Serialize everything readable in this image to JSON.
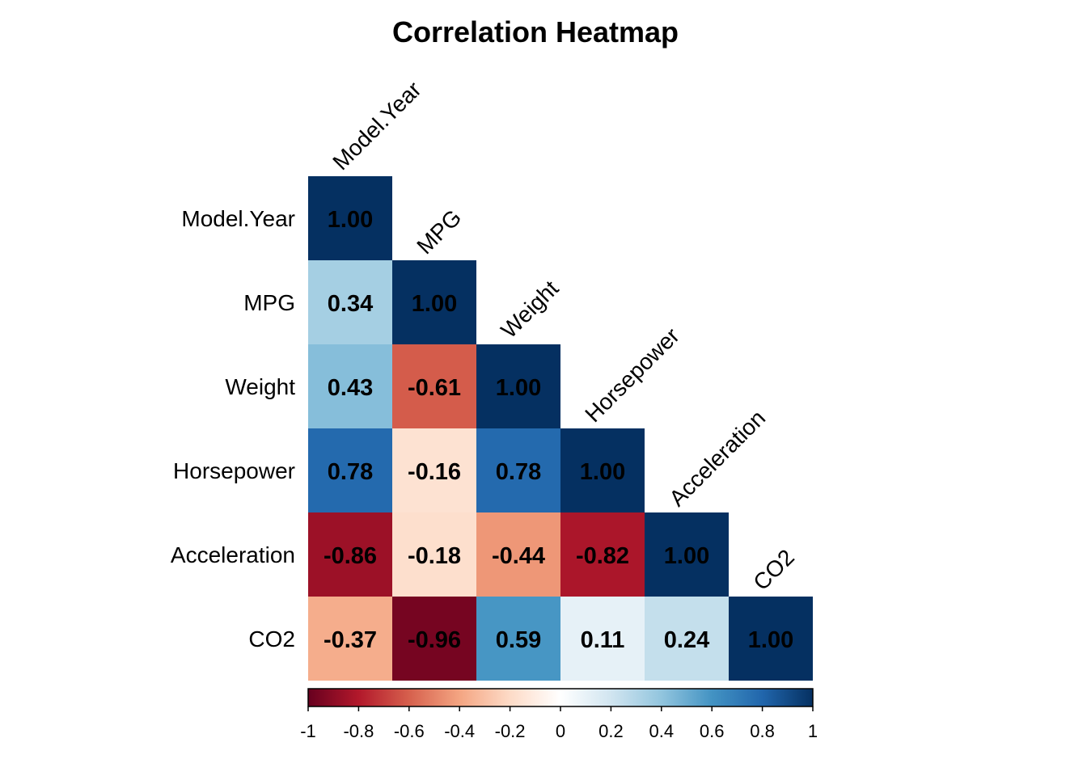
{
  "chart_data": {
    "type": "heatmap",
    "title": "Correlation Heatmap",
    "variables": [
      "Model.Year",
      "MPG",
      "Weight",
      "Horsepower",
      "Acceleration",
      "CO2"
    ],
    "matrix_lower": [
      [
        1.0
      ],
      [
        0.34,
        1.0
      ],
      [
        0.43,
        -0.61,
        1.0
      ],
      [
        0.78,
        -0.16,
        0.78,
        1.0
      ],
      [
        -0.86,
        -0.18,
        -0.44,
        -0.82,
        1.0
      ],
      [
        -0.37,
        -0.96,
        0.59,
        0.11,
        0.24,
        1.0
      ]
    ],
    "color_scale": {
      "range": [
        -1,
        1
      ],
      "ticks": [
        -1,
        -0.8,
        -0.6,
        -0.4,
        -0.2,
        0,
        0.2,
        0.4,
        0.6,
        0.8,
        1
      ],
      "tick_labels": [
        "-1",
        "-0.8",
        "-0.6",
        "-0.4",
        "-0.2",
        "0",
        "0.2",
        "0.4",
        "0.6",
        "0.8",
        "1"
      ],
      "colors": [
        "#67001F",
        "#B2182B",
        "#D6604D",
        "#F4A582",
        "#FDDBC7",
        "#FFFFFF",
        "#D1E5F0",
        "#92C5DE",
        "#4393C3",
        "#2166AC",
        "#053061"
      ]
    },
    "legend": "bottom",
    "layout": "lower-triangle"
  }
}
